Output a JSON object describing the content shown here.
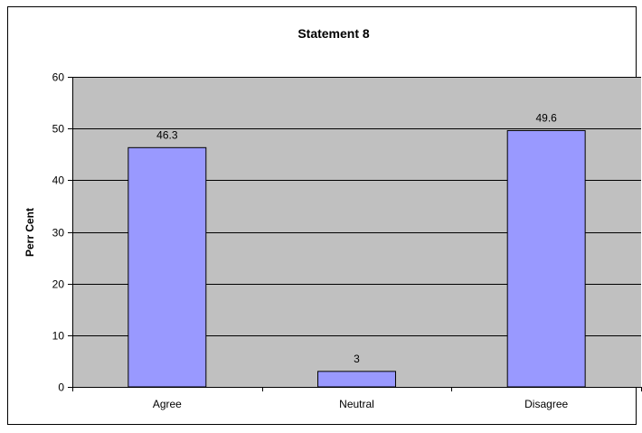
{
  "chart_data": {
    "type": "bar",
    "title": "Statement 8",
    "xlabel": "",
    "ylabel": "Perr Cent",
    "categories": [
      "Agree",
      "Neutral",
      "Disagree"
    ],
    "values": [
      46.3,
      3,
      49.6
    ],
    "data_labels": [
      "46.3",
      "3",
      "49.6"
    ],
    "ylim": [
      0,
      60
    ],
    "y_ticks": [
      0,
      10,
      20,
      30,
      40,
      50,
      60
    ],
    "grid": true,
    "legend": "none",
    "colors": {
      "bar_fill": "#9999ff",
      "bar_stroke": "#000000",
      "plot_background": "#c0c0c0",
      "chart_background": "#ffffff",
      "gridline": "#000000"
    }
  }
}
